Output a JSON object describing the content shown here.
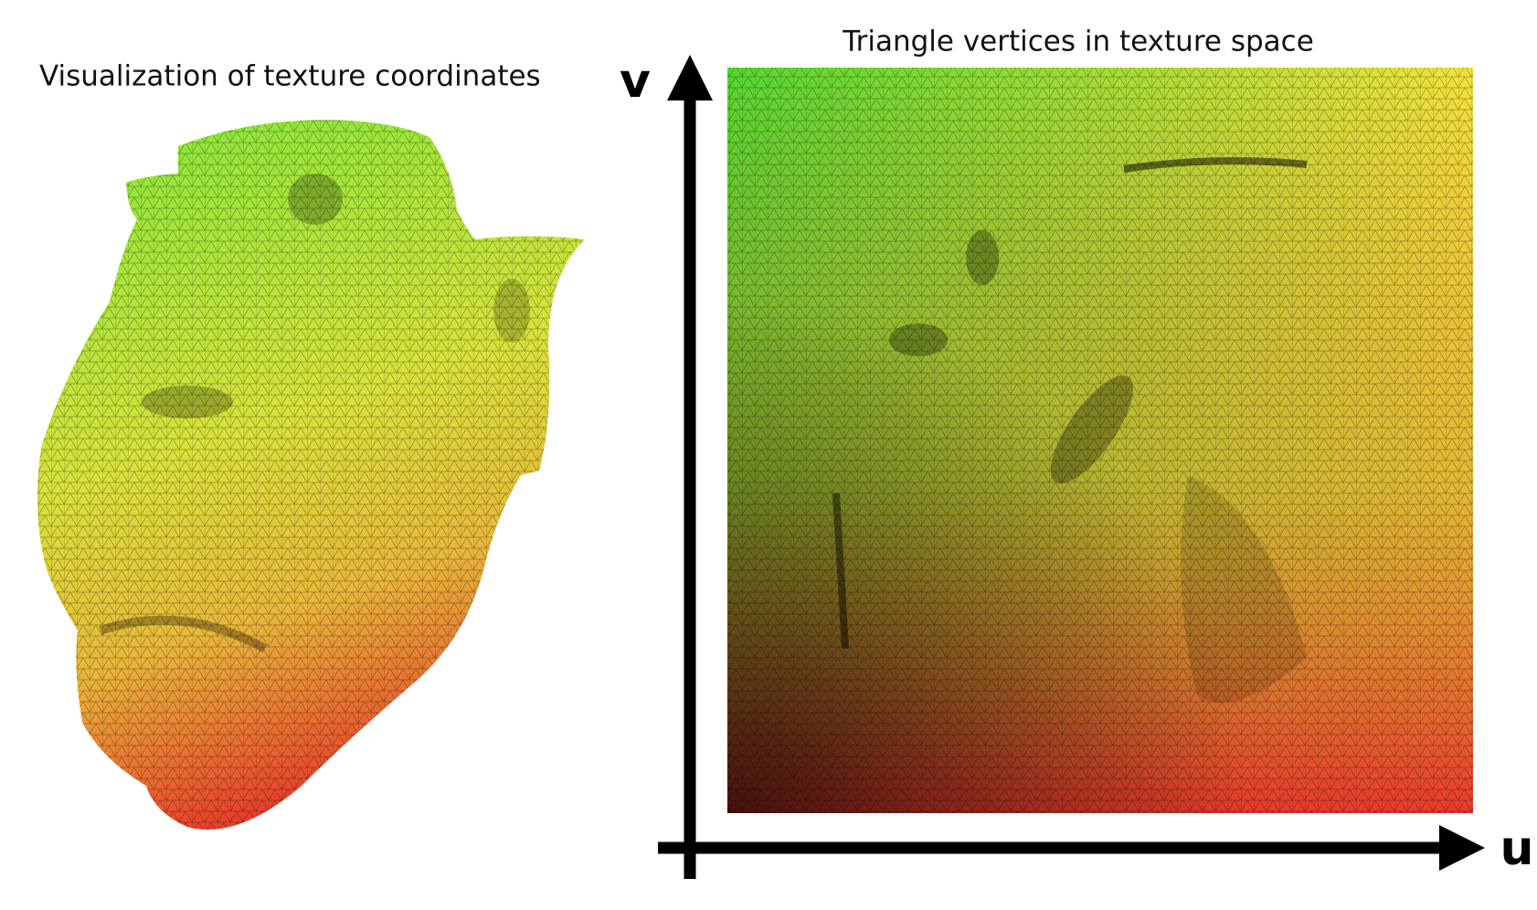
{
  "left": {
    "title": "Visualization of texture coordinates"
  },
  "right": {
    "title": "Triangle vertices in texture space",
    "v_label": "v",
    "u_label": "u"
  }
}
